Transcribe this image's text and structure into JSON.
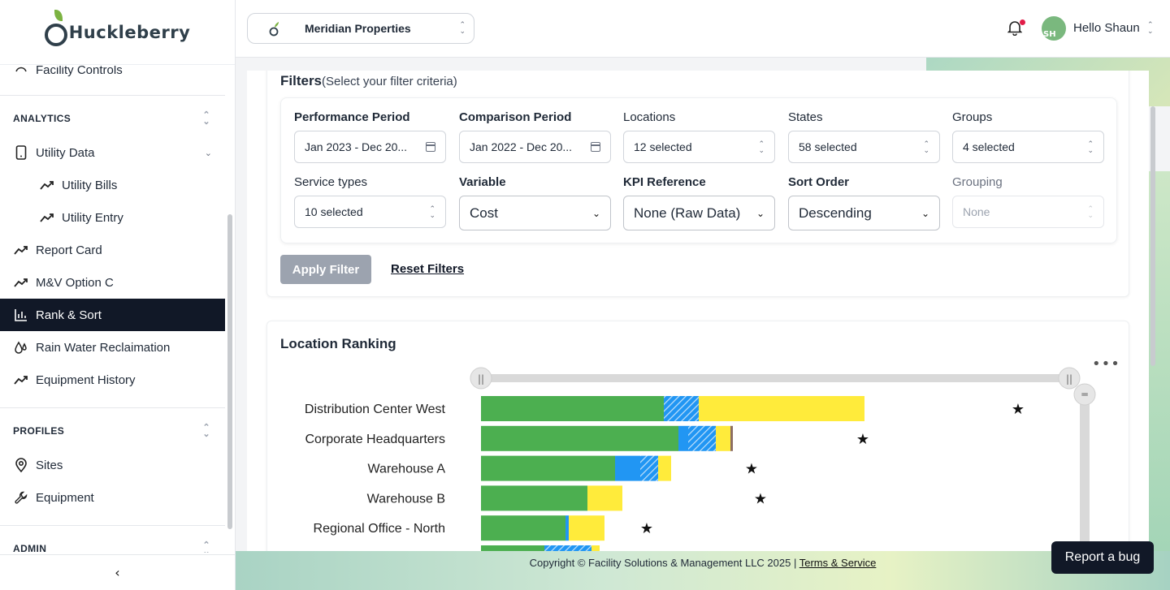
{
  "app": {
    "logo_text": "Huckleberry"
  },
  "header": {
    "organization": "Meridian Properties",
    "greeting": "Hello Shaun",
    "avatar_initials": "SH"
  },
  "sidebar": {
    "top_item_partial": "Facility Controls",
    "sections": {
      "analytics": "ANALYTICS",
      "profiles": "PROFILES",
      "admin": "ADMIN"
    },
    "items": {
      "utility_data": "Utility Data",
      "utility_bills": "Utility Bills",
      "utility_entry": "Utility Entry",
      "report_card": "Report Card",
      "mv_option_c": "M&V Option C",
      "rank_sort": "Rank & Sort",
      "rain_water": "Rain Water Reclaimation",
      "equipment_history": "Equipment History",
      "sites": "Sites",
      "equipment": "Equipment"
    },
    "collapse_glyph": "‹"
  },
  "filters": {
    "title": "Filters",
    "subtitle": "(Select your filter criteria)",
    "performance_period": {
      "label": "Performance Period",
      "value": "Jan 2023 - Dec 20..."
    },
    "comparison_period": {
      "label": "Comparison Period",
      "value": "Jan 2022 - Dec 20..."
    },
    "locations": {
      "label": "Locations",
      "value": "12 selected"
    },
    "states": {
      "label": "States",
      "value": "58 selected"
    },
    "groups": {
      "label": "Groups",
      "value": "4 selected"
    },
    "service_types": {
      "label": "Service types",
      "value": "10 selected"
    },
    "variable": {
      "label": "Variable",
      "value": "Cost"
    },
    "kpi_reference": {
      "label": "KPI Reference",
      "value": "None (Raw Data)"
    },
    "sort_order": {
      "label": "Sort Order",
      "value": "Descending"
    },
    "grouping": {
      "label": "Grouping",
      "value": "None"
    },
    "apply_label": "Apply Filter",
    "reset_label": "Reset Filters"
  },
  "ranking": {
    "title": "Location Ranking",
    "menu_glyph": "•••"
  },
  "chart_data": {
    "type": "bar",
    "orientation": "horizontal",
    "stacked": true,
    "categories": [
      "Distribution Center West",
      "Corporate Headquarters",
      "Warehouse A",
      "Warehouse B",
      "Regional Office - North"
    ],
    "series": [
      {
        "color": "#4caf50",
        "values": [
          225,
          243,
          165,
          131,
          104
        ]
      },
      {
        "color": "#2196f3",
        "values": [
          0,
          12,
          31,
          0,
          4
        ]
      },
      {
        "color": "#2196f3",
        "pattern": "hatched",
        "values": [
          43,
          34,
          22,
          0,
          0
        ]
      },
      {
        "color": "#ffeb3b",
        "values": [
          204,
          18,
          16,
          43,
          44
        ]
      },
      {
        "color": "#8d6e63",
        "values": [
          0,
          3,
          0,
          0,
          0
        ]
      }
    ],
    "markers": {
      "glyph": "★",
      "values": [
        661,
        470,
        333,
        344,
        204
      ]
    },
    "xlim": [
      0,
      724
    ],
    "range_slider": true
  },
  "footer": {
    "copyright": "Copyright © Facility Solutions & Management LLC 2025 |",
    "terms": "Terms & Service"
  },
  "report_bug": "Report a bug",
  "colors": {
    "active_nav": "#111827",
    "accent_green": "#4caf50",
    "accent_blue": "#2196f3",
    "accent_yellow": "#ffeb3b"
  }
}
